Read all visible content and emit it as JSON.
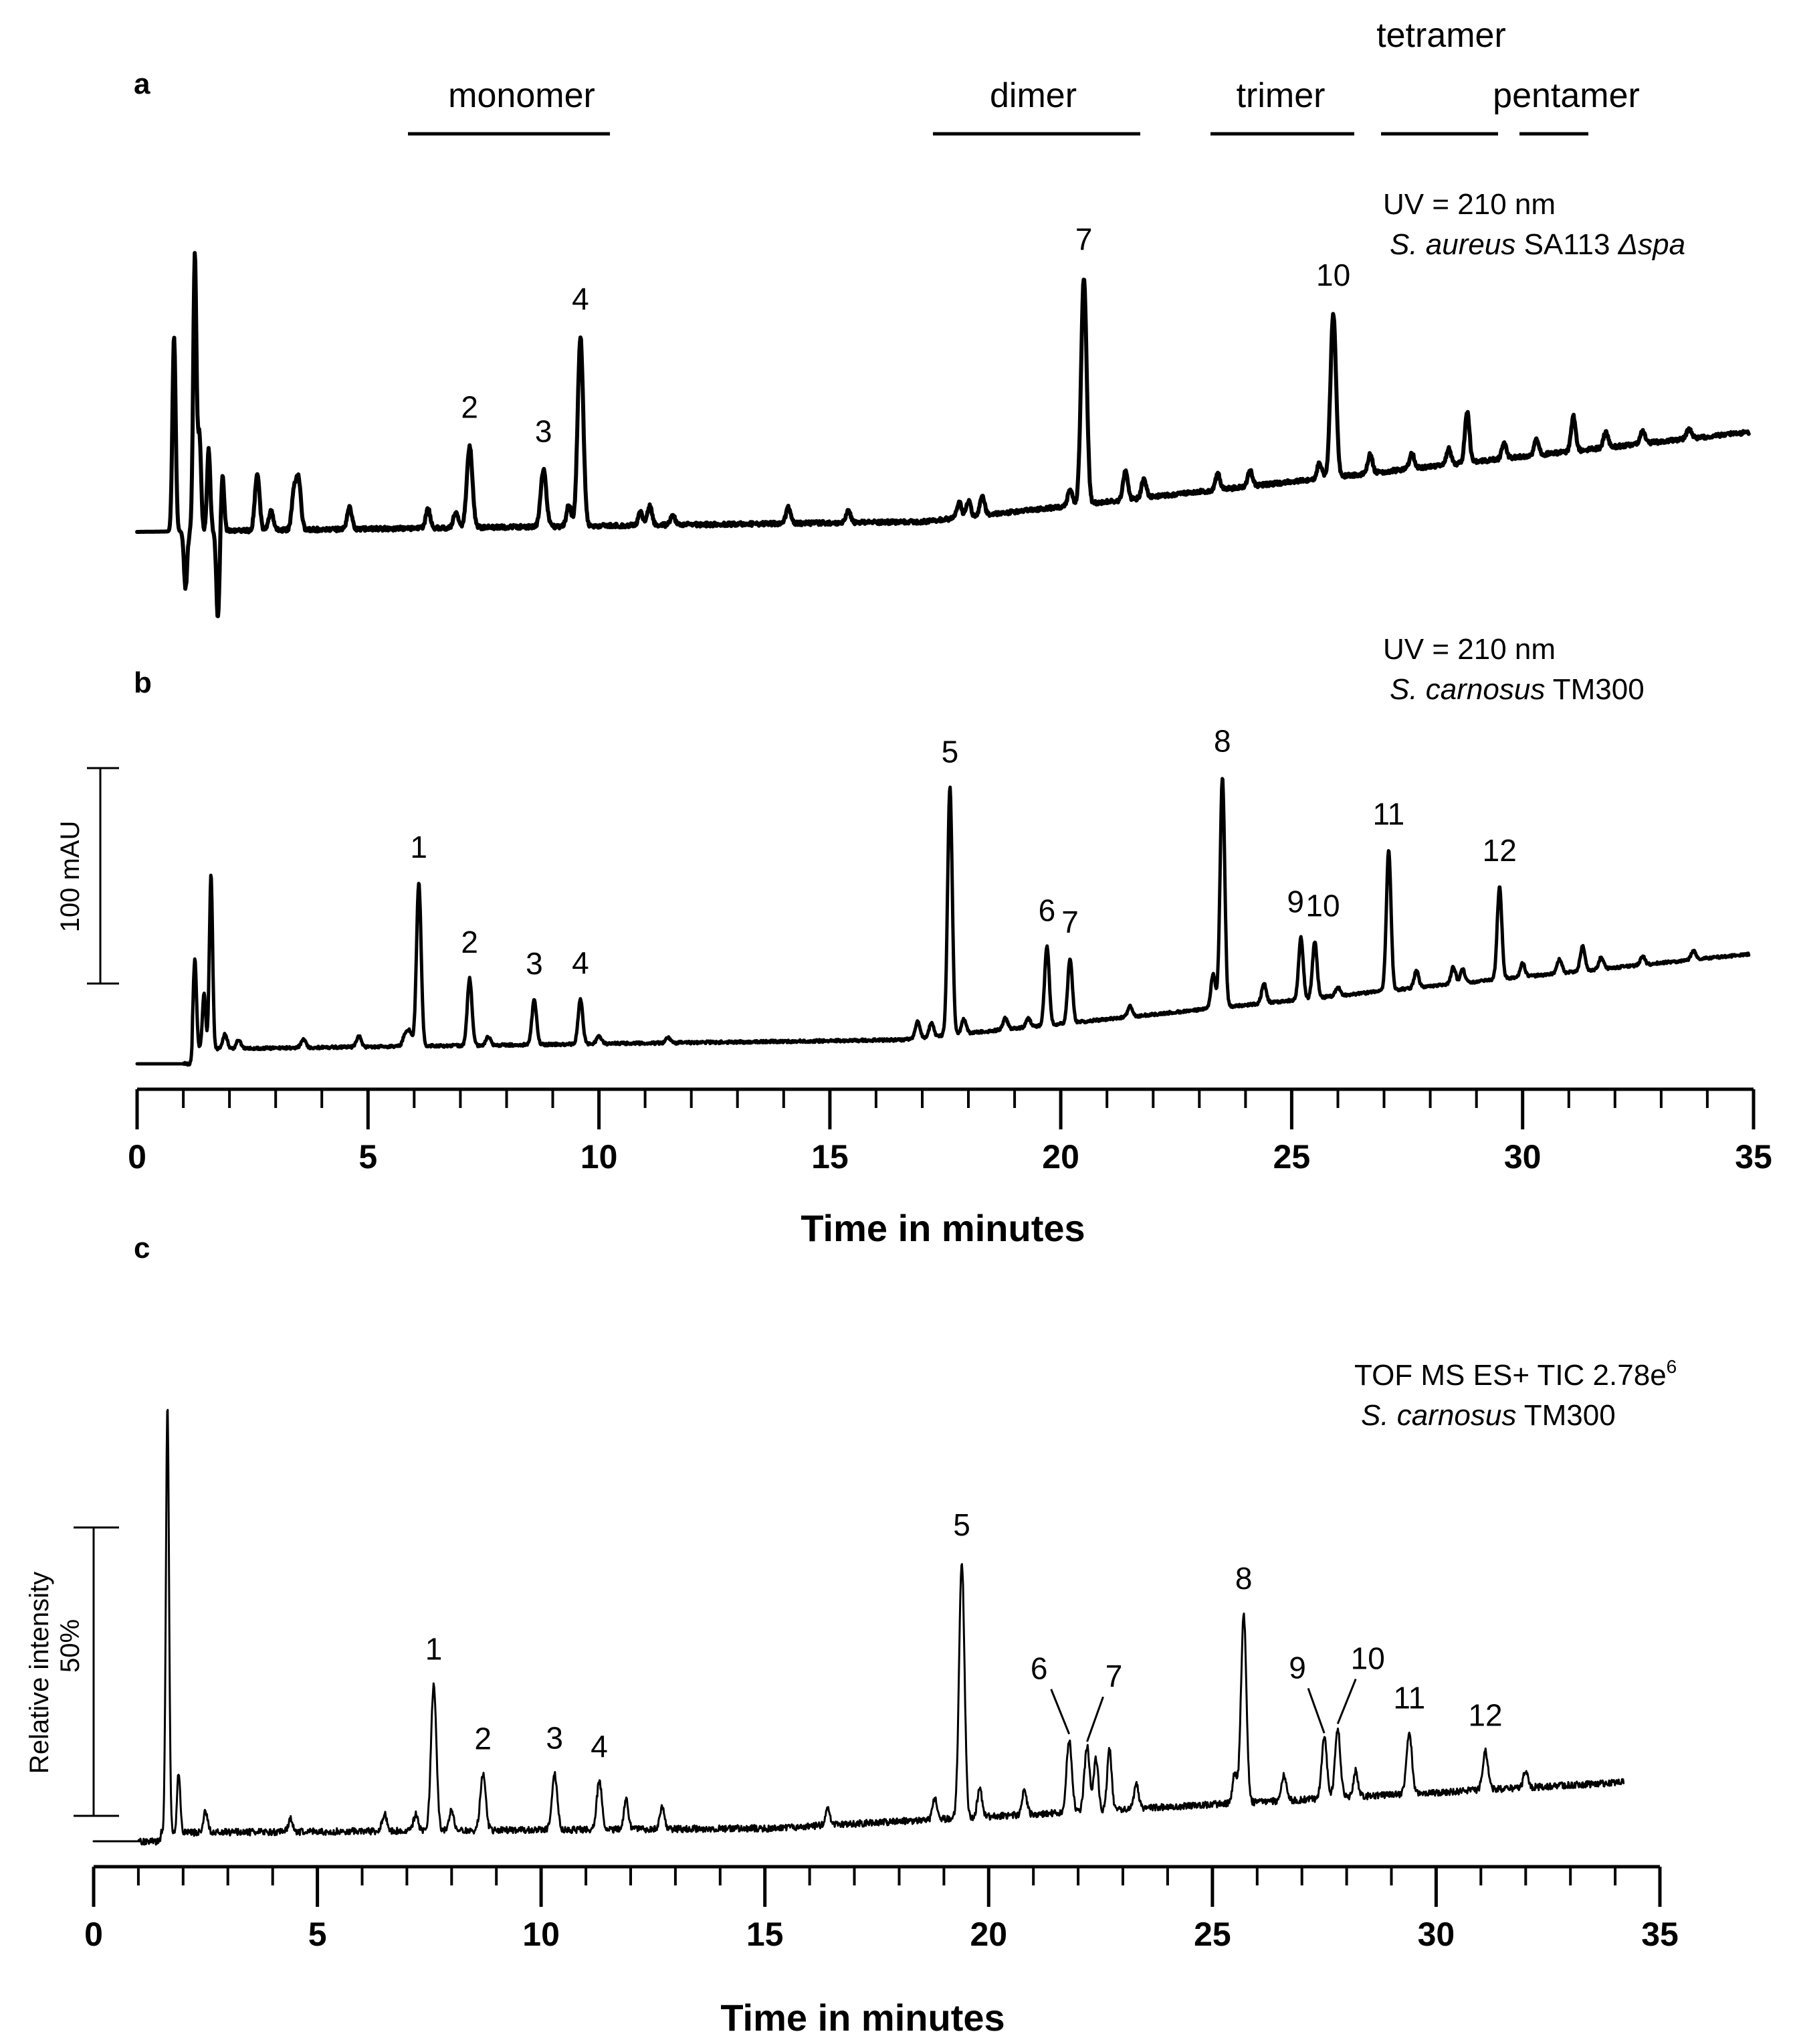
{
  "chart_data": [
    {
      "type": "line",
      "panel": "a",
      "x_range": [
        0,
        35
      ],
      "detection": "UV = 210 nm",
      "strain_italic": "S. aureus",
      "strain_plain": "SA113",
      "strain_mutant": "Δspa",
      "oligomer_groups": [
        {
          "label": "monomer",
          "start": 5.8,
          "end": 10.2
        },
        {
          "label": "dimer",
          "start": 17.3,
          "end": 21.8
        },
        {
          "label": "trimer",
          "start": 23.2,
          "end": 26.2
        },
        {
          "label": "tetramer",
          "start": 26.8,
          "end": 29.3
        },
        {
          "label": "pentamer",
          "start": 29.5,
          "end": 31.0
        }
      ],
      "peaks": [
        {
          "label": "2",
          "time": 7.2,
          "height": 0.26
        },
        {
          "label": "3",
          "time": 8.8,
          "height": 0.18
        },
        {
          "label": "4",
          "time": 9.6,
          "height": 0.6
        },
        {
          "label": "7",
          "time": 20.5,
          "height": 0.72
        },
        {
          "label": "10",
          "time": 25.9,
          "height": 0.52
        }
      ]
    },
    {
      "type": "line",
      "panel": "b",
      "x_range": [
        0,
        35
      ],
      "detection": "UV = 210 nm",
      "strain_italic": "S. carnosus",
      "strain_plain": "TM300",
      "scale_bar": "100 mAU",
      "xlabel": "Time in minutes",
      "xticks": [
        0,
        5,
        10,
        15,
        20,
        25,
        30,
        35
      ],
      "peaks": [
        {
          "label": "1",
          "time": 6.1,
          "height": 0.58
        },
        {
          "label": "2",
          "time": 7.2,
          "height": 0.24
        },
        {
          "label": "3",
          "time": 8.6,
          "height": 0.16
        },
        {
          "label": "4",
          "time": 9.6,
          "height": 0.16
        },
        {
          "label": "5",
          "time": 17.6,
          "height": 0.88
        },
        {
          "label": "6",
          "time": 19.7,
          "height": 0.28
        },
        {
          "label": "7",
          "time": 20.2,
          "height": 0.23
        },
        {
          "label": "8",
          "time": 23.5,
          "height": 0.82
        },
        {
          "label": "9",
          "time": 25.2,
          "height": 0.22
        },
        {
          "label": "10",
          "time": 25.5,
          "height": 0.2
        },
        {
          "label": "11",
          "time": 27.1,
          "height": 0.5
        },
        {
          "label": "12",
          "time": 29.5,
          "height": 0.33
        }
      ]
    },
    {
      "type": "line",
      "panel": "c",
      "x_range": [
        0,
        35
      ],
      "detection_prefix": "TOF MS ES+ TIC 2.78e",
      "detection_exponent": "6",
      "strain_italic": "S. carnosus",
      "strain_plain": "TM300",
      "ylabel": "Relative intensity",
      "scale_bar": "50%",
      "xlabel": "Time in minutes",
      "xticks": [
        0,
        5,
        10,
        15,
        20,
        25,
        30,
        35
      ],
      "peaks": [
        {
          "label": "1",
          "time": 7.6,
          "height": 0.34
        },
        {
          "label": "2",
          "time": 8.7,
          "height": 0.13
        },
        {
          "label": "3",
          "time": 10.3,
          "height": 0.13
        },
        {
          "label": "4",
          "time": 11.3,
          "height": 0.11
        },
        {
          "label": "5",
          "time": 19.4,
          "height": 0.6
        },
        {
          "label": "6",
          "time": 21.8,
          "height": 0.17
        },
        {
          "label": "7",
          "time": 22.2,
          "height": 0.15
        },
        {
          "label": "8",
          "time": 25.7,
          "height": 0.44
        },
        {
          "label": "9",
          "time": 27.5,
          "height": 0.14
        },
        {
          "label": "10",
          "time": 27.8,
          "height": 0.16
        },
        {
          "label": "11",
          "time": 29.4,
          "height": 0.14
        },
        {
          "label": "12",
          "time": 31.1,
          "height": 0.09
        }
      ]
    }
  ]
}
